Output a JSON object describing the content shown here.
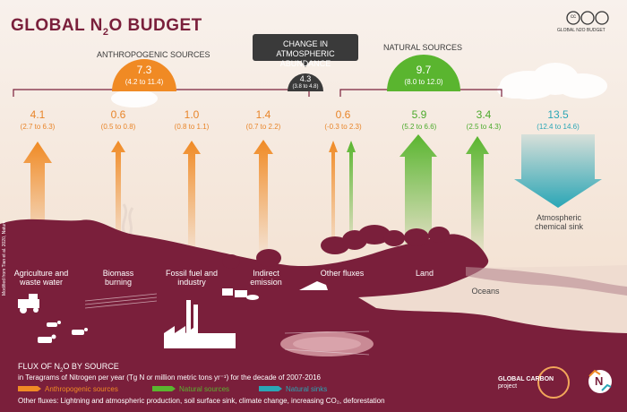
{
  "title": {
    "main": "GLOBAL N",
    "sub": "2",
    "end": "O BUDGET"
  },
  "cc_label": "GLOBAL N2O BUDGET",
  "headers": {
    "anthropogenic": "ANTHROPOGENIC SOURCES",
    "change": "CHANGE IN ATMOSPHERIC ABUNDANCE",
    "natural": "NATURAL SOURCES"
  },
  "totals": {
    "anthropogenic": {
      "value": "7.3",
      "range": "(4.2 to 11.4)"
    },
    "change": {
      "value": "4.3",
      "range": "(3.8 to 4.8)"
    },
    "natural": {
      "value": "9.7",
      "range": "(8.0 to 12.0)"
    }
  },
  "fluxes": [
    {
      "value": "4.1",
      "range": "(2.7 to 6.3)",
      "label": "Agriculture and waste water"
    },
    {
      "value": "0.6",
      "range": "(0.5 to 0.8)",
      "label": "Biomass burning"
    },
    {
      "value": "1.0",
      "range": "(0.8 to 1.1)",
      "label": "Fossil fuel and industry"
    },
    {
      "value": "1.4",
      "range": "(0.7 to 2.2)",
      "label": "Indirect emission"
    },
    {
      "value": "0.6",
      "range": "(-0.3 to 2.3)",
      "label": "Other fluxes"
    },
    {
      "value": "5.9",
      "range": "(5.2 to 6.6)",
      "label": "Land"
    },
    {
      "value": "3.4",
      "range": "(2.5 to 4.3)",
      "label": "Oceans"
    },
    {
      "value": "13.5",
      "range": "(12.4 to 14.6)",
      "label": "Atmospheric chemical sink"
    }
  ],
  "legend": {
    "heading_a": "FLUX OF N",
    "heading_sub": "2",
    "heading_b": "O BY SOURCE",
    "units": "in Teragrams of Nitrogen per year (Tg N or million metric tons yr⁻¹) for the decade of 2007-2016",
    "items": [
      {
        "label": "Anthropogenic sources",
        "color": "#f08a24"
      },
      {
        "label": "Natural sources",
        "color": "#5ab52f"
      },
      {
        "label": "Natural sinks",
        "color": "#2aa6b6"
      }
    ],
    "other": "Other fluxes: Lightning and atmospheric production, soil surface sink, climate change, increasing CO₂, deforestation"
  },
  "credit": "Modified from Tian et al. 2020, Nature",
  "logo": {
    "line1": "GLOBAL",
    "line2": "CARBON",
    "line3": "project"
  },
  "colors": {
    "anthro": "#f08a24",
    "natural": "#5ab52f",
    "sink": "#2aa6b6",
    "land": "#7a1f3b"
  }
}
